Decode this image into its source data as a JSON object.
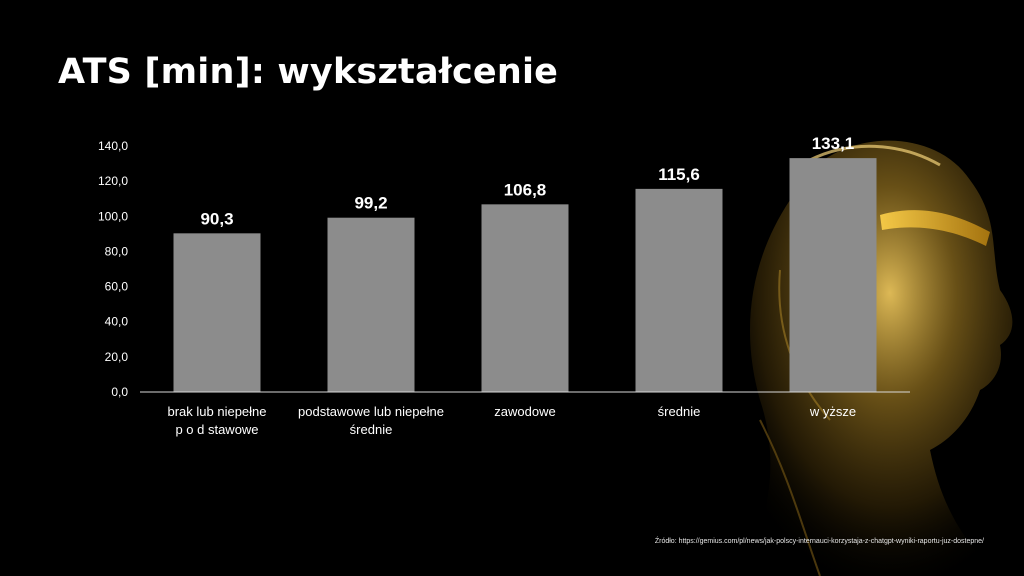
{
  "slide": {
    "title": "ATS [min]: wykształcenie",
    "source": "Źródło: https://gemius.com/pl/news/jak-polscy-internauci-korzystaja-z-chatgpt-wyniki-raportu-juz-dostepne/"
  },
  "colors": {
    "background": "#000000",
    "bar": "#8c8c8c",
    "text": "#ffffff",
    "figure_gold": "#c9a13a"
  },
  "chart_data": {
    "type": "bar",
    "categories": [
      [
        "brak lub niepełne",
        "p o d stawowe"
      ],
      [
        "podstawowe lub niepełne",
        "średnie"
      ],
      [
        "zawodowe"
      ],
      [
        "średnie"
      ],
      [
        "w yższe"
      ]
    ],
    "values": [
      90.3,
      99.2,
      106.8,
      115.6,
      133.1
    ],
    "data_labels": [
      "90,3",
      "99,2",
      "106,8",
      "115,6",
      "133,1"
    ],
    "ylim": [
      0,
      140
    ],
    "yticks": [
      0,
      20,
      40,
      60,
      80,
      100,
      120,
      140
    ],
    "ytick_labels": [
      "0,0",
      "20,0",
      "40,0",
      "60,0",
      "80,0",
      "100,0",
      "120,0",
      "140,0"
    ],
    "grid": false,
    "legend": "none"
  }
}
